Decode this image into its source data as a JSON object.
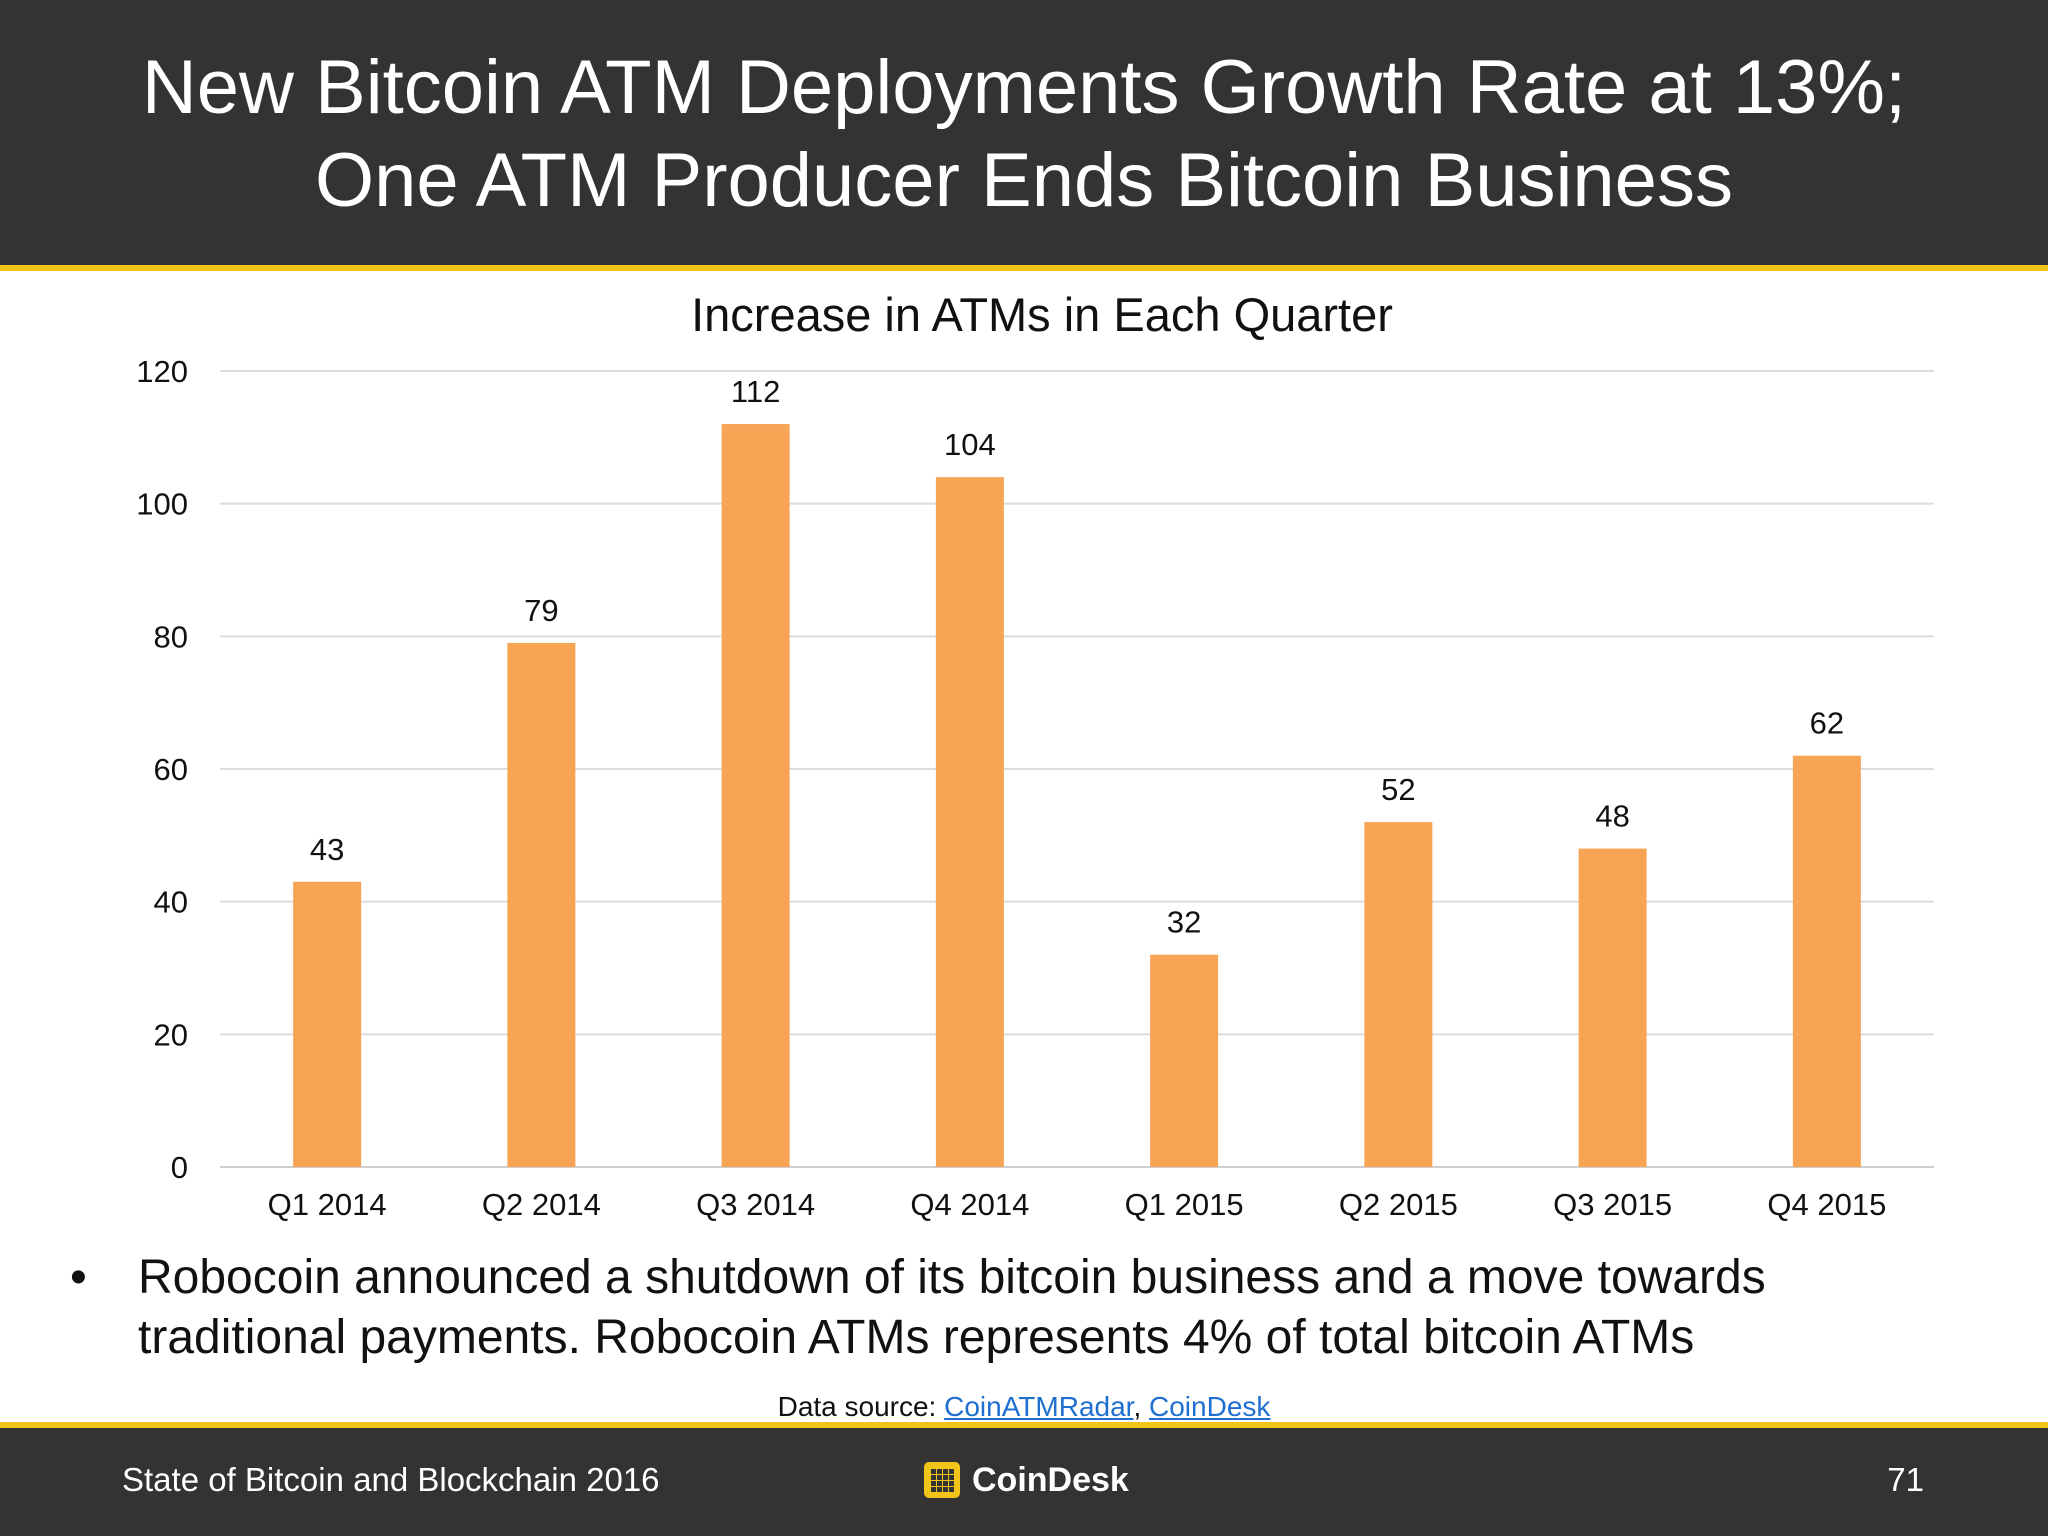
{
  "header": {
    "title_line_1": "New Bitcoin ATM Deployments Growth Rate at 13%;",
    "title_line_2": "One ATM Producer Ends Bitcoin Business"
  },
  "chart_data": {
    "type": "bar",
    "title": "Increase in ATMs in Each Quarter",
    "categories": [
      "Q1 2014",
      "Q2 2014",
      "Q3 2014",
      "Q4 2014",
      "Q1 2015",
      "Q2 2015",
      "Q3 2015",
      "Q4 2015"
    ],
    "values": [
      43,
      79,
      112,
      104,
      32,
      52,
      48,
      62
    ],
    "data_labels": [
      "43",
      "79",
      "112",
      "104",
      "32",
      "52",
      "48",
      "62"
    ],
    "xlabel": "",
    "ylabel": "",
    "ylim": [
      0,
      120
    ],
    "yticks": [
      0,
      20,
      40,
      60,
      80,
      100,
      120
    ],
    "ytick_labels": [
      "0",
      "20",
      "40",
      "60",
      "80",
      "100",
      "120"
    ],
    "grid": true,
    "legend": "none",
    "bar_color": "#f7a554"
  },
  "bullet": {
    "marker": "•",
    "line_1": "Robocoin announced a shutdown of its bitcoin business and a move towards",
    "line_2": "traditional payments. Robocoin ATMs represents 4% of total bitcoin ATMs"
  },
  "source": {
    "prefix": "Data source: ",
    "link_1": "CoinATMRadar",
    "separator": ", ",
    "link_2": "CoinDesk"
  },
  "footer": {
    "left_text": "State of Bitcoin and Blockchain 2016",
    "logo_text": "CoinDesk",
    "page_number": "71"
  },
  "colors": {
    "header_bg": "#333333",
    "accent": "#f2c318",
    "bar": "#f7a554",
    "link": "#1f6fd1"
  }
}
